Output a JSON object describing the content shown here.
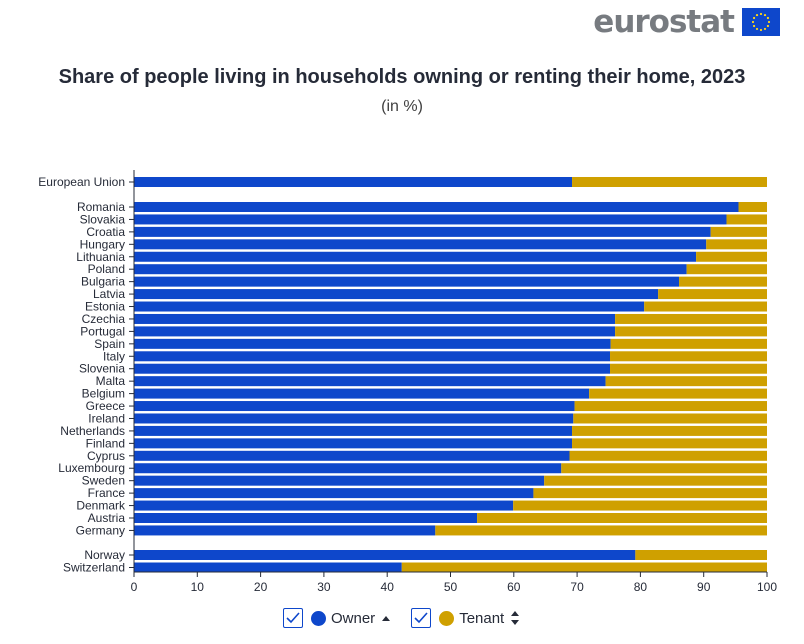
{
  "header": {
    "logo_text": "eurostat"
  },
  "colors": {
    "owner": "#0e47cb",
    "tenant": "#cfa000",
    "axis": "#262b38",
    "flag_star": "#ffd617"
  },
  "legend": {
    "owner_label": "Owner",
    "tenant_label": "Tenant",
    "owner_sort": "ascending",
    "tenant_sort": "unsorted"
  },
  "chart_data": {
    "type": "bar",
    "orientation": "horizontal",
    "stacked": true,
    "title": "Share of people living in households owning or renting their home, 2023",
    "subtitle": "(in %)",
    "categories": [
      "European Union",
      "Romania",
      "Slovakia",
      "Croatia",
      "Hungary",
      "Lithuania",
      "Poland",
      "Bulgaria",
      "Latvia",
      "Estonia",
      "Czechia",
      "Portugal",
      "Spain",
      "Italy",
      "Slovenia",
      "Malta",
      "Belgium",
      "Greece",
      "Ireland",
      "Netherlands",
      "Finland",
      "Cyprus",
      "Luxembourg",
      "Sweden",
      "France",
      "Denmark",
      "Austria",
      "Germany",
      "Norway",
      "Switzerland"
    ],
    "series": [
      {
        "name": "Owner",
        "values": [
          69.2,
          95.5,
          93.6,
          91.1,
          90.4,
          88.8,
          87.3,
          86.1,
          82.8,
          80.6,
          76.0,
          76.0,
          75.3,
          75.2,
          75.2,
          74.5,
          71.9,
          69.6,
          69.4,
          69.2,
          69.2,
          68.8,
          67.5,
          64.8,
          63.1,
          59.9,
          54.2,
          47.6,
          79.2,
          42.3
        ]
      },
      {
        "name": "Tenant",
        "values": [
          30.8,
          4.5,
          6.4,
          8.9,
          9.6,
          11.2,
          12.7,
          13.9,
          17.2,
          19.4,
          24.0,
          24.0,
          24.7,
          24.8,
          24.8,
          25.5,
          28.1,
          30.4,
          30.6,
          30.8,
          30.8,
          31.2,
          32.5,
          35.2,
          36.9,
          40.1,
          45.8,
          52.4,
          20.8,
          57.7
        ]
      }
    ],
    "xlim": [
      0,
      100
    ],
    "xticks": [
      "0",
      "10",
      "20",
      "30",
      "40",
      "50",
      "60",
      "70",
      "80",
      "90",
      "100"
    ],
    "grid": false,
    "legend_position": "bottom-center"
  }
}
